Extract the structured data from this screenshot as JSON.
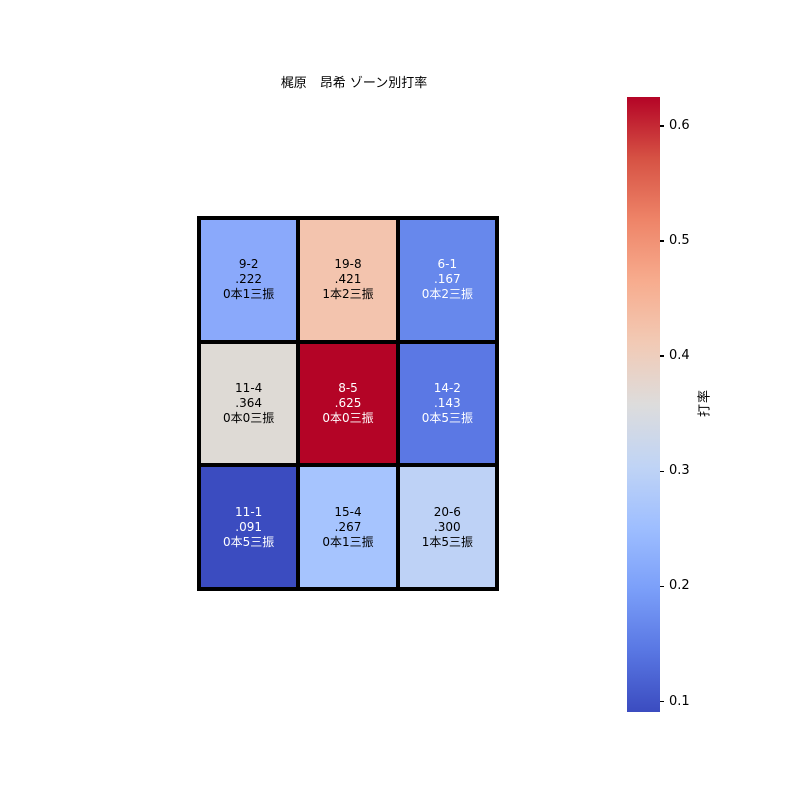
{
  "chart_data": {
    "type": "heatmap",
    "title": "梶原　昂希 ゾーン別打率",
    "colormap": "coolwarm",
    "vmin": 0.091,
    "vmax": 0.625,
    "grid": {
      "rows": 3,
      "cols": 3
    },
    "grid_line_color": "#000000",
    "cells": [
      {
        "row": 0,
        "col": 0,
        "record": "9-2",
        "average": ".222",
        "hr_so": "0本1三振",
        "value": 0.222,
        "bg_color": "#8aa9fb",
        "text_color": "#000000"
      },
      {
        "row": 0,
        "col": 1,
        "record": "19-8",
        "average": ".421",
        "hr_so": "1本2三振",
        "value": 0.421,
        "bg_color": "#f3c4ae",
        "text_color": "#000000"
      },
      {
        "row": 0,
        "col": 2,
        "record": "6-1",
        "average": ".167",
        "hr_so": "0本2三振",
        "value": 0.167,
        "bg_color": "#6788ec",
        "text_color": "#ffffff"
      },
      {
        "row": 1,
        "col": 0,
        "record": "11-4",
        "average": ".364",
        "hr_so": "0本0三振",
        "value": 0.364,
        "bg_color": "#dedad5",
        "text_color": "#000000"
      },
      {
        "row": 1,
        "col": 1,
        "record": "8-5",
        "average": ".625",
        "hr_so": "0本0三振",
        "value": 0.625,
        "bg_color": "#b40426",
        "text_color": "#ffffff"
      },
      {
        "row": 1,
        "col": 2,
        "record": "14-2",
        "average": ".143",
        "hr_so": "0本5三振",
        "value": 0.143,
        "bg_color": "#5b78e4",
        "text_color": "#ffffff"
      },
      {
        "row": 2,
        "col": 0,
        "record": "11-1",
        "average": ".091",
        "hr_so": "0本5三振",
        "value": 0.091,
        "bg_color": "#3b4cc0",
        "text_color": "#ffffff"
      },
      {
        "row": 2,
        "col": 1,
        "record": "15-4",
        "average": ".267",
        "hr_so": "0本1三振",
        "value": 0.267,
        "bg_color": "#a6c4fe",
        "text_color": "#000000"
      },
      {
        "row": 2,
        "col": 2,
        "record": "20-6",
        "average": ".300",
        "hr_so": "1本5三振",
        "value": 0.3,
        "bg_color": "#bed2f6",
        "text_color": "#000000"
      }
    ],
    "colorbar": {
      "label": "打率",
      "ticks": [
        {
          "label": "0.6",
          "value": 0.6
        },
        {
          "label": "0.5",
          "value": 0.5
        },
        {
          "label": "0.4",
          "value": 0.4
        },
        {
          "label": "0.3",
          "value": 0.3
        },
        {
          "label": "0.2",
          "value": 0.2
        },
        {
          "label": "0.1",
          "value": 0.1
        }
      ],
      "gradient_top_to_bottom": [
        {
          "pos": 0.0,
          "color": "#b40426"
        },
        {
          "pos": 0.1,
          "color": "#d65244"
        },
        {
          "pos": 0.2,
          "color": "#ee8468"
        },
        {
          "pos": 0.3,
          "color": "#f7ac8e"
        },
        {
          "pos": 0.4,
          "color": "#f2cab5"
        },
        {
          "pos": 0.5,
          "color": "#dddcdc"
        },
        {
          "pos": 0.6,
          "color": "#c0d4f5"
        },
        {
          "pos": 0.7,
          "color": "#9ebeff"
        },
        {
          "pos": 0.8,
          "color": "#7b9ff9"
        },
        {
          "pos": 0.9,
          "color": "#5977e3"
        },
        {
          "pos": 1.0,
          "color": "#3b4cc0"
        }
      ]
    }
  }
}
